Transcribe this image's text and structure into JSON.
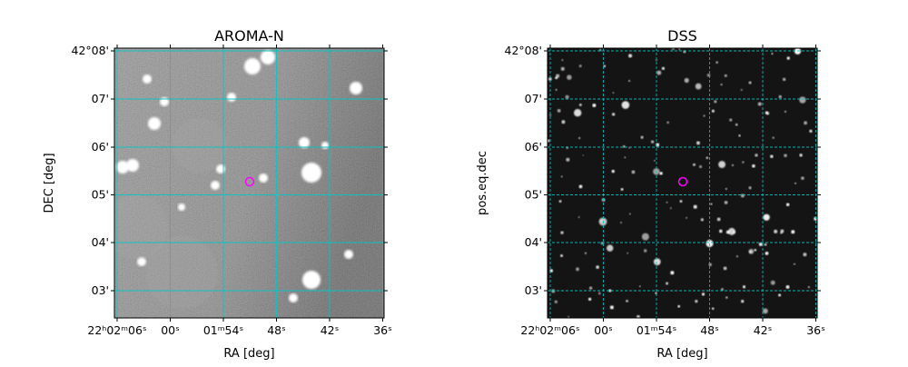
{
  "panels": [
    {
      "title": "AROMA-N",
      "xlabel": "RA [deg]",
      "ylabel": "DEC [deg]",
      "xticks": [
        "22ʰ02ᵐ06ˢ",
        "00ˢ",
        "01ᵐ54ˢ",
        "48ˢ",
        "42ˢ",
        "36ˢ"
      ],
      "yticks": [
        "42°08'",
        "07'",
        "06'",
        "05'",
        "04'",
        "03'"
      ]
    },
    {
      "title": "DSS",
      "xlabel": "RA [deg]",
      "ylabel": "pos.eq.dec",
      "xticks": [
        "22ʰ02ᵐ06ˢ",
        "00ˢ",
        "01ᵐ54ˢ",
        "48ˢ",
        "42ˢ",
        "36ˢ"
      ],
      "yticks": [
        "42°08'",
        "07'",
        "06'",
        "05'",
        "04'",
        "03'"
      ]
    }
  ]
}
